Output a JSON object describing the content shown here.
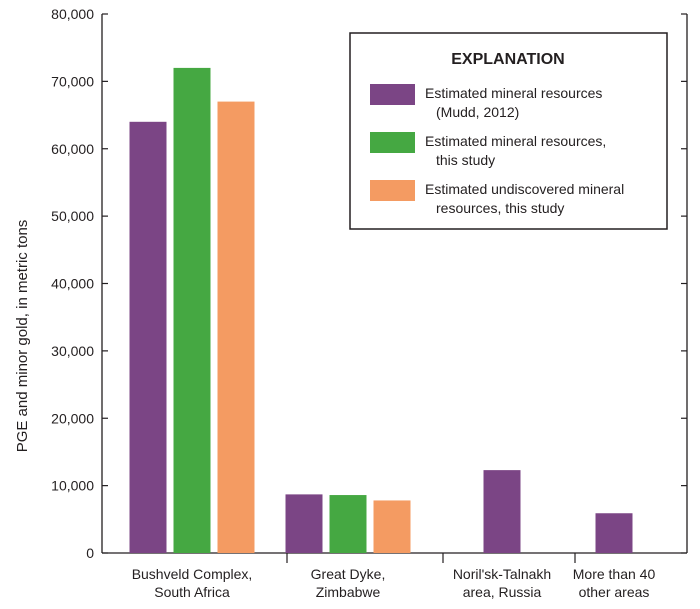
{
  "chart_data": {
    "type": "bar",
    "categories": [
      [
        "Bushveld Complex,",
        "South Africa"
      ],
      [
        "Great Dyke,",
        "Zimbabwe"
      ],
      [
        "Noril'sk-Talnakh",
        "area, Russia"
      ],
      [
        "More than 40",
        "other areas"
      ]
    ],
    "series": [
      {
        "name": [
          "Estimated mineral resources",
          "(Mudd, 2012)"
        ],
        "color": "#7b4585",
        "values": [
          64000,
          8700,
          12300,
          5900
        ]
      },
      {
        "name": [
          "Estimated mineral resources,",
          "this study"
        ],
        "color": "#45a842",
        "values": [
          72000,
          8600,
          null,
          null
        ]
      },
      {
        "name": [
          "Estimated undiscovered mineral",
          "resources, this study"
        ],
        "color": "#f49b62",
        "values": [
          67000,
          7800,
          null,
          null
        ]
      }
    ],
    "ylabel": "PGE and minor gold, in metric tons",
    "yticks": [
      "0",
      "10,000",
      "20,000",
      "30,000",
      "40,000",
      "50,000",
      "60,000",
      "70,000",
      "80,000"
    ],
    "ylim": [
      0,
      80000
    ],
    "legend_title": "EXPLANATION",
    "legend_position": "top-right",
    "grid": false
  }
}
